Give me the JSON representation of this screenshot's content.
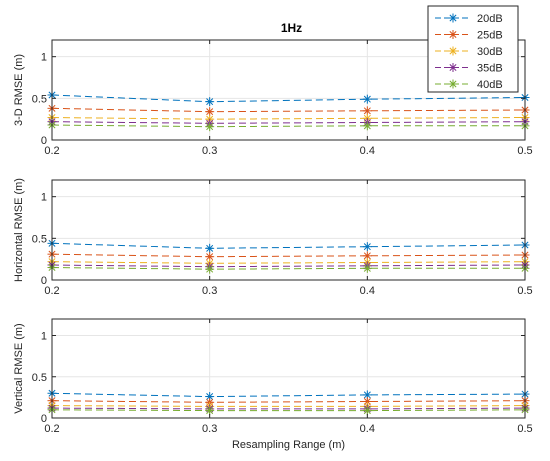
{
  "chart_data": [
    {
      "type": "line",
      "title": "1Hz",
      "xlabel": "",
      "ylabel": "3-D RMSE  (m)",
      "xlim": [
        0.2,
        0.5
      ],
      "ylim": [
        0,
        1.2
      ],
      "xticks": [
        "0.2",
        "0.3",
        "0.4",
        "0.5"
      ],
      "yticks": [
        "0",
        "0.5",
        "1"
      ],
      "grid": true,
      "x": [
        0.2,
        0.3,
        0.4,
        0.5
      ],
      "series": [
        {
          "name": "20dB",
          "values": [
            0.54,
            0.46,
            0.49,
            0.51
          ]
        },
        {
          "name": "25dB",
          "values": [
            0.38,
            0.34,
            0.35,
            0.36
          ]
        },
        {
          "name": "30dB",
          "values": [
            0.27,
            0.25,
            0.26,
            0.27
          ]
        },
        {
          "name": "35dB",
          "values": [
            0.22,
            0.2,
            0.21,
            0.22
          ]
        },
        {
          "name": "40dB",
          "values": [
            0.18,
            0.16,
            0.17,
            0.17
          ]
        }
      ]
    },
    {
      "type": "line",
      "title": "",
      "xlabel": "",
      "ylabel": "Horizontal RMSE  (m)",
      "xlim": [
        0.2,
        0.5
      ],
      "ylim": [
        0,
        1.2
      ],
      "xticks": [
        "0.2",
        "0.3",
        "0.4",
        "0.5"
      ],
      "yticks": [
        "0",
        "0.5",
        "1"
      ],
      "grid": true,
      "x": [
        0.2,
        0.3,
        0.4,
        0.5
      ],
      "series": [
        {
          "name": "20dB",
          "values": [
            0.44,
            0.38,
            0.4,
            0.42
          ]
        },
        {
          "name": "25dB",
          "values": [
            0.31,
            0.28,
            0.29,
            0.3
          ]
        },
        {
          "name": "30dB",
          "values": [
            0.22,
            0.2,
            0.21,
            0.22
          ]
        },
        {
          "name": "35dB",
          "values": [
            0.18,
            0.16,
            0.17,
            0.18
          ]
        },
        {
          "name": "40dB",
          "values": [
            0.15,
            0.13,
            0.14,
            0.14
          ]
        }
      ]
    },
    {
      "type": "line",
      "title": "",
      "xlabel": "Resampling Range (m)",
      "ylabel": "Vertical RMSE  (m)",
      "xlim": [
        0.2,
        0.5
      ],
      "ylim": [
        0,
        1.2
      ],
      "xticks": [
        "0.2",
        "0.3",
        "0.4",
        "0.5"
      ],
      "yticks": [
        "0",
        "0.5",
        "1"
      ],
      "grid": true,
      "x": [
        0.2,
        0.3,
        0.4,
        0.5
      ],
      "series": [
        {
          "name": "20dB",
          "values": [
            0.3,
            0.26,
            0.28,
            0.29
          ]
        },
        {
          "name": "25dB",
          "values": [
            0.21,
            0.19,
            0.2,
            0.21
          ]
        },
        {
          "name": "30dB",
          "values": [
            0.15,
            0.14,
            0.14,
            0.15
          ]
        },
        {
          "name": "35dB",
          "values": [
            0.12,
            0.11,
            0.11,
            0.12
          ]
        },
        {
          "name": "40dB",
          "values": [
            0.1,
            0.09,
            0.09,
            0.1
          ]
        }
      ]
    }
  ],
  "legend": {
    "placement": "top-right",
    "entries": [
      "20dB",
      "25dB",
      "30dB",
      "35dB",
      "40dB"
    ]
  },
  "colors": [
    "#0072bd",
    "#d95319",
    "#edb120",
    "#7e2f8e",
    "#77ac30"
  ],
  "marker": "asterisk",
  "line_style": "dashed"
}
